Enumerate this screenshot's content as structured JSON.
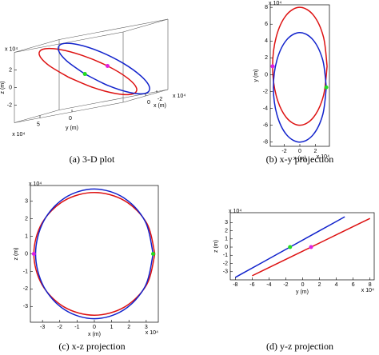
{
  "chart_data": [
    {
      "type": "line3d",
      "caption": "(a)  3-D plot",
      "xlabel": "x (m)",
      "ylabel": "y (m)",
      "zlabel": "z (m)",
      "x_multiplier": "x 10⁴",
      "y_multiplier": "x 10⁴",
      "z_multiplier": "x 10⁴",
      "xlim": [
        -4,
        4
      ],
      "ylim": [
        -8,
        9
      ],
      "zlim": [
        -4,
        4
      ],
      "xticks": [
        -2,
        0
      ],
      "yticks": [
        0,
        5
      ],
      "zticks": [
        -2,
        0,
        2
      ],
      "series": [
        {
          "color": "#dd1111",
          "x": [
            3.5,
            3.03,
            1.75,
            0,
            -1.75,
            -3.03,
            -3.5,
            -3.03,
            -1.75,
            0,
            1.75,
            3.03,
            3.5
          ],
          "y": [
            1,
            4.5,
            7.06,
            8,
            7.06,
            4.5,
            1,
            -2.5,
            -5.06,
            -6,
            -5.06,
            -2.5,
            1
          ],
          "z": [
            0,
            1.75,
            3.03,
            3.5,
            3.03,
            1.75,
            0,
            -1.75,
            -3.03,
            -3.5,
            -3.03,
            -1.75,
            0
          ]
        },
        {
          "color": "#1122cc",
          "x": [
            3.4,
            2.94,
            1.7,
            0,
            -1.7,
            -2.94,
            -3.4,
            -2.94,
            -1.7,
            0,
            1.7,
            2.94,
            3.4
          ],
          "y": [
            -1.5,
            1.75,
            4.13,
            5,
            4.13,
            1.75,
            -1.5,
            -4.75,
            -7.13,
            -8,
            -7.13,
            -4.75,
            -1.5
          ],
          "z": [
            0,
            1.85,
            3.2,
            3.7,
            3.2,
            1.85,
            0,
            -1.85,
            -3.2,
            -3.7,
            -3.2,
            -1.85,
            0
          ]
        }
      ],
      "points": [
        {
          "color": "#e020e0",
          "x": -3.5,
          "y": 1,
          "z": 0
        },
        {
          "color": "#22dd22",
          "x": 3.4,
          "y": -1.5,
          "z": 0
        }
      ]
    },
    {
      "type": "line",
      "caption": "(b)  x-y projection",
      "xlabel": "x (m)",
      "ylabel": "y (m)",
      "x_multiplier": "x 10⁴",
      "y_multiplier": "x 10⁴",
      "xlim": [
        -3.8,
        3.8
      ],
      "ylim": [
        -8.5,
        8.3
      ],
      "xticks": [
        -2,
        0,
        2
      ],
      "yticks": [
        -8,
        -6,
        -4,
        -2,
        0,
        2,
        4,
        6,
        8
      ],
      "series": [
        {
          "color": "#dd1111",
          "x": [
            3.5,
            3.03,
            1.75,
            0,
            -1.75,
            -3.03,
            -3.5,
            -3.03,
            -1.75,
            0,
            1.75,
            3.03,
            3.5
          ],
          "values": [
            1,
            4.5,
            7.06,
            8,
            7.06,
            4.5,
            1,
            -2.5,
            -5.06,
            -6,
            -5.06,
            -2.5,
            1
          ]
        },
        {
          "color": "#1122cc",
          "x": [
            3.4,
            2.94,
            1.7,
            0,
            -1.7,
            -2.94,
            -3.4,
            -2.94,
            -1.7,
            0,
            1.7,
            2.94,
            3.4
          ],
          "values": [
            -1.5,
            1.75,
            4.13,
            5,
            4.13,
            1.75,
            -1.5,
            -4.75,
            -7.13,
            -8,
            -7.13,
            -4.75,
            -1.5
          ]
        }
      ],
      "points": [
        {
          "color": "#e020e0",
          "x": -3.5,
          "y": 1
        },
        {
          "color": "#22dd22",
          "x": 3.4,
          "y": -1.5
        }
      ]
    },
    {
      "type": "line",
      "caption": "(c)  x-z projection",
      "xlabel": "x (m)",
      "ylabel": "z (m)",
      "x_multiplier": "x 10⁴",
      "y_multiplier": "x 10⁴",
      "xlim": [
        -3.7,
        3.7
      ],
      "ylim": [
        -3.9,
        3.9
      ],
      "xticks": [
        -3,
        -2,
        -1,
        0,
        1,
        2,
        3
      ],
      "yticks": [
        -3,
        -2,
        -1,
        0,
        1,
        2,
        3
      ],
      "series": [
        {
          "color": "#dd1111",
          "x": [
            3.5,
            3.03,
            1.75,
            0,
            -1.75,
            -3.03,
            -3.5,
            -3.03,
            -1.75,
            0,
            1.75,
            3.03,
            3.5
          ],
          "values": [
            0,
            1.75,
            3.03,
            3.5,
            3.03,
            1.75,
            0,
            -1.75,
            -3.03,
            -3.5,
            -3.03,
            -1.75,
            0
          ]
        },
        {
          "color": "#1122cc",
          "x": [
            3.4,
            2.94,
            1.7,
            0,
            -1.7,
            -2.94,
            -3.4,
            -2.94,
            -1.7,
            0,
            1.7,
            2.94,
            3.4
          ],
          "values": [
            0,
            1.85,
            3.2,
            3.7,
            3.2,
            1.85,
            0,
            -1.85,
            -3.2,
            -3.7,
            -3.2,
            -1.85,
            0
          ]
        }
      ],
      "points": [
        {
          "color": "#e020e0",
          "x": -3.5,
          "y": 0
        },
        {
          "color": "#22dd22",
          "x": 3.4,
          "y": 0
        }
      ]
    },
    {
      "type": "line",
      "caption": "(d)  y-z projection",
      "xlabel": "y (m)",
      "ylabel": "z (m)",
      "x_multiplier": "x 10⁴",
      "y_multiplier": "x 10⁴",
      "xlim": [
        -8.6,
        8.5
      ],
      "ylim": [
        -4,
        4.2
      ],
      "xticks": [
        -8,
        -6,
        -4,
        -2,
        0,
        2,
        4,
        6,
        8
      ],
      "yticks": [
        -3,
        -2,
        -1,
        0,
        1,
        2,
        3
      ],
      "series": [
        {
          "color": "#dd1111",
          "x": [
            1,
            4.5,
            7.06,
            8,
            7.06,
            4.5,
            1,
            -2.5,
            -5.06,
            -6,
            -5.06,
            -2.5,
            1
          ],
          "values": [
            0,
            1.75,
            3.03,
            3.5,
            3.03,
            1.75,
            0,
            -1.75,
            -3.03,
            -3.5,
            -3.03,
            -1.75,
            0
          ]
        },
        {
          "color": "#1122cc",
          "x": [
            -1.5,
            1.75,
            4.13,
            5,
            4.13,
            1.75,
            -1.5,
            -4.75,
            -7.13,
            -8,
            -7.13,
            -4.75,
            -1.5
          ],
          "values": [
            0,
            1.85,
            3.2,
            3.7,
            3.2,
            1.85,
            0,
            -1.85,
            -3.2,
            -3.7,
            -3.2,
            -1.85,
            0
          ]
        }
      ],
      "points": [
        {
          "color": "#e020e0",
          "x": 1,
          "y": 0
        },
        {
          "color": "#22dd22",
          "x": -1.5,
          "y": 0
        }
      ]
    }
  ]
}
